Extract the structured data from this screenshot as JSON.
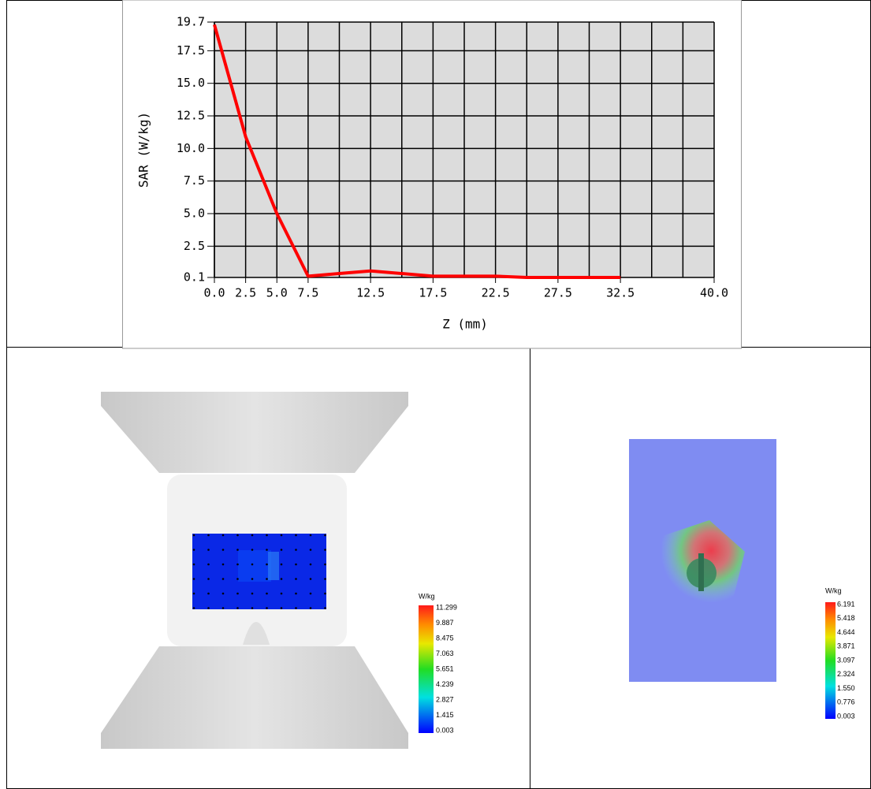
{
  "chart_data": {
    "type": "line",
    "xlabel": "Z (mm)",
    "ylabel": "SAR (W/kg)",
    "x": [
      0,
      2.5,
      5,
      7.5,
      10,
      12.5,
      15,
      17.5,
      20,
      22.5,
      25,
      27.5,
      30,
      32.5
    ],
    "series": [
      {
        "name": "SAR",
        "color": "#ff0000",
        "values": [
          19.5,
          10.9,
          5.0,
          0.2,
          0.4,
          0.6,
          0.4,
          0.2,
          0.2,
          0.2,
          0.1,
          0.1,
          0.1,
          0.1
        ]
      }
    ],
    "xlim": [
      0,
      40
    ],
    "xticks": [
      {
        "value": 0,
        "label": "0.0"
      },
      2.5,
      {
        "value": 5,
        "label": "5.0"
      },
      7.5,
      {
        "value": 10,
        "label": null
      },
      12.5,
      {
        "value": 15,
        "label": null
      },
      17.5,
      {
        "value": 20,
        "label": null
      },
      22.5,
      {
        "value": 25,
        "label": null
      },
      27.5,
      {
        "value": 30,
        "label": null
      },
      32.5,
      {
        "value": 35,
        "label": null
      },
      {
        "value": 37.5,
        "label": null
      },
      {
        "value": 40,
        "label": "40.0"
      }
    ],
    "ylim": [
      0.1,
      19.7
    ],
    "yticks": [
      0.1,
      2.5,
      {
        "value": 5,
        "label": "5.0"
      },
      7.5,
      {
        "value": 10,
        "label": "10.0"
      },
      12.5,
      {
        "value": 15,
        "label": "15.0"
      },
      17.5,
      19.7
    ],
    "grid": true
  },
  "colorbars": [
    {
      "unit": "W/kg",
      "labels": [
        "11.299",
        "9.887",
        "8.475",
        "7.063",
        "5.651",
        "4.239",
        "2.827",
        "1.415",
        "0.003"
      ]
    },
    {
      "unit": "W/kg",
      "labels": [
        "6.191",
        "5.418",
        "4.644",
        "3.871",
        "3.097",
        "2.324",
        "1.550",
        "0.776",
        "0.003"
      ]
    }
  ]
}
